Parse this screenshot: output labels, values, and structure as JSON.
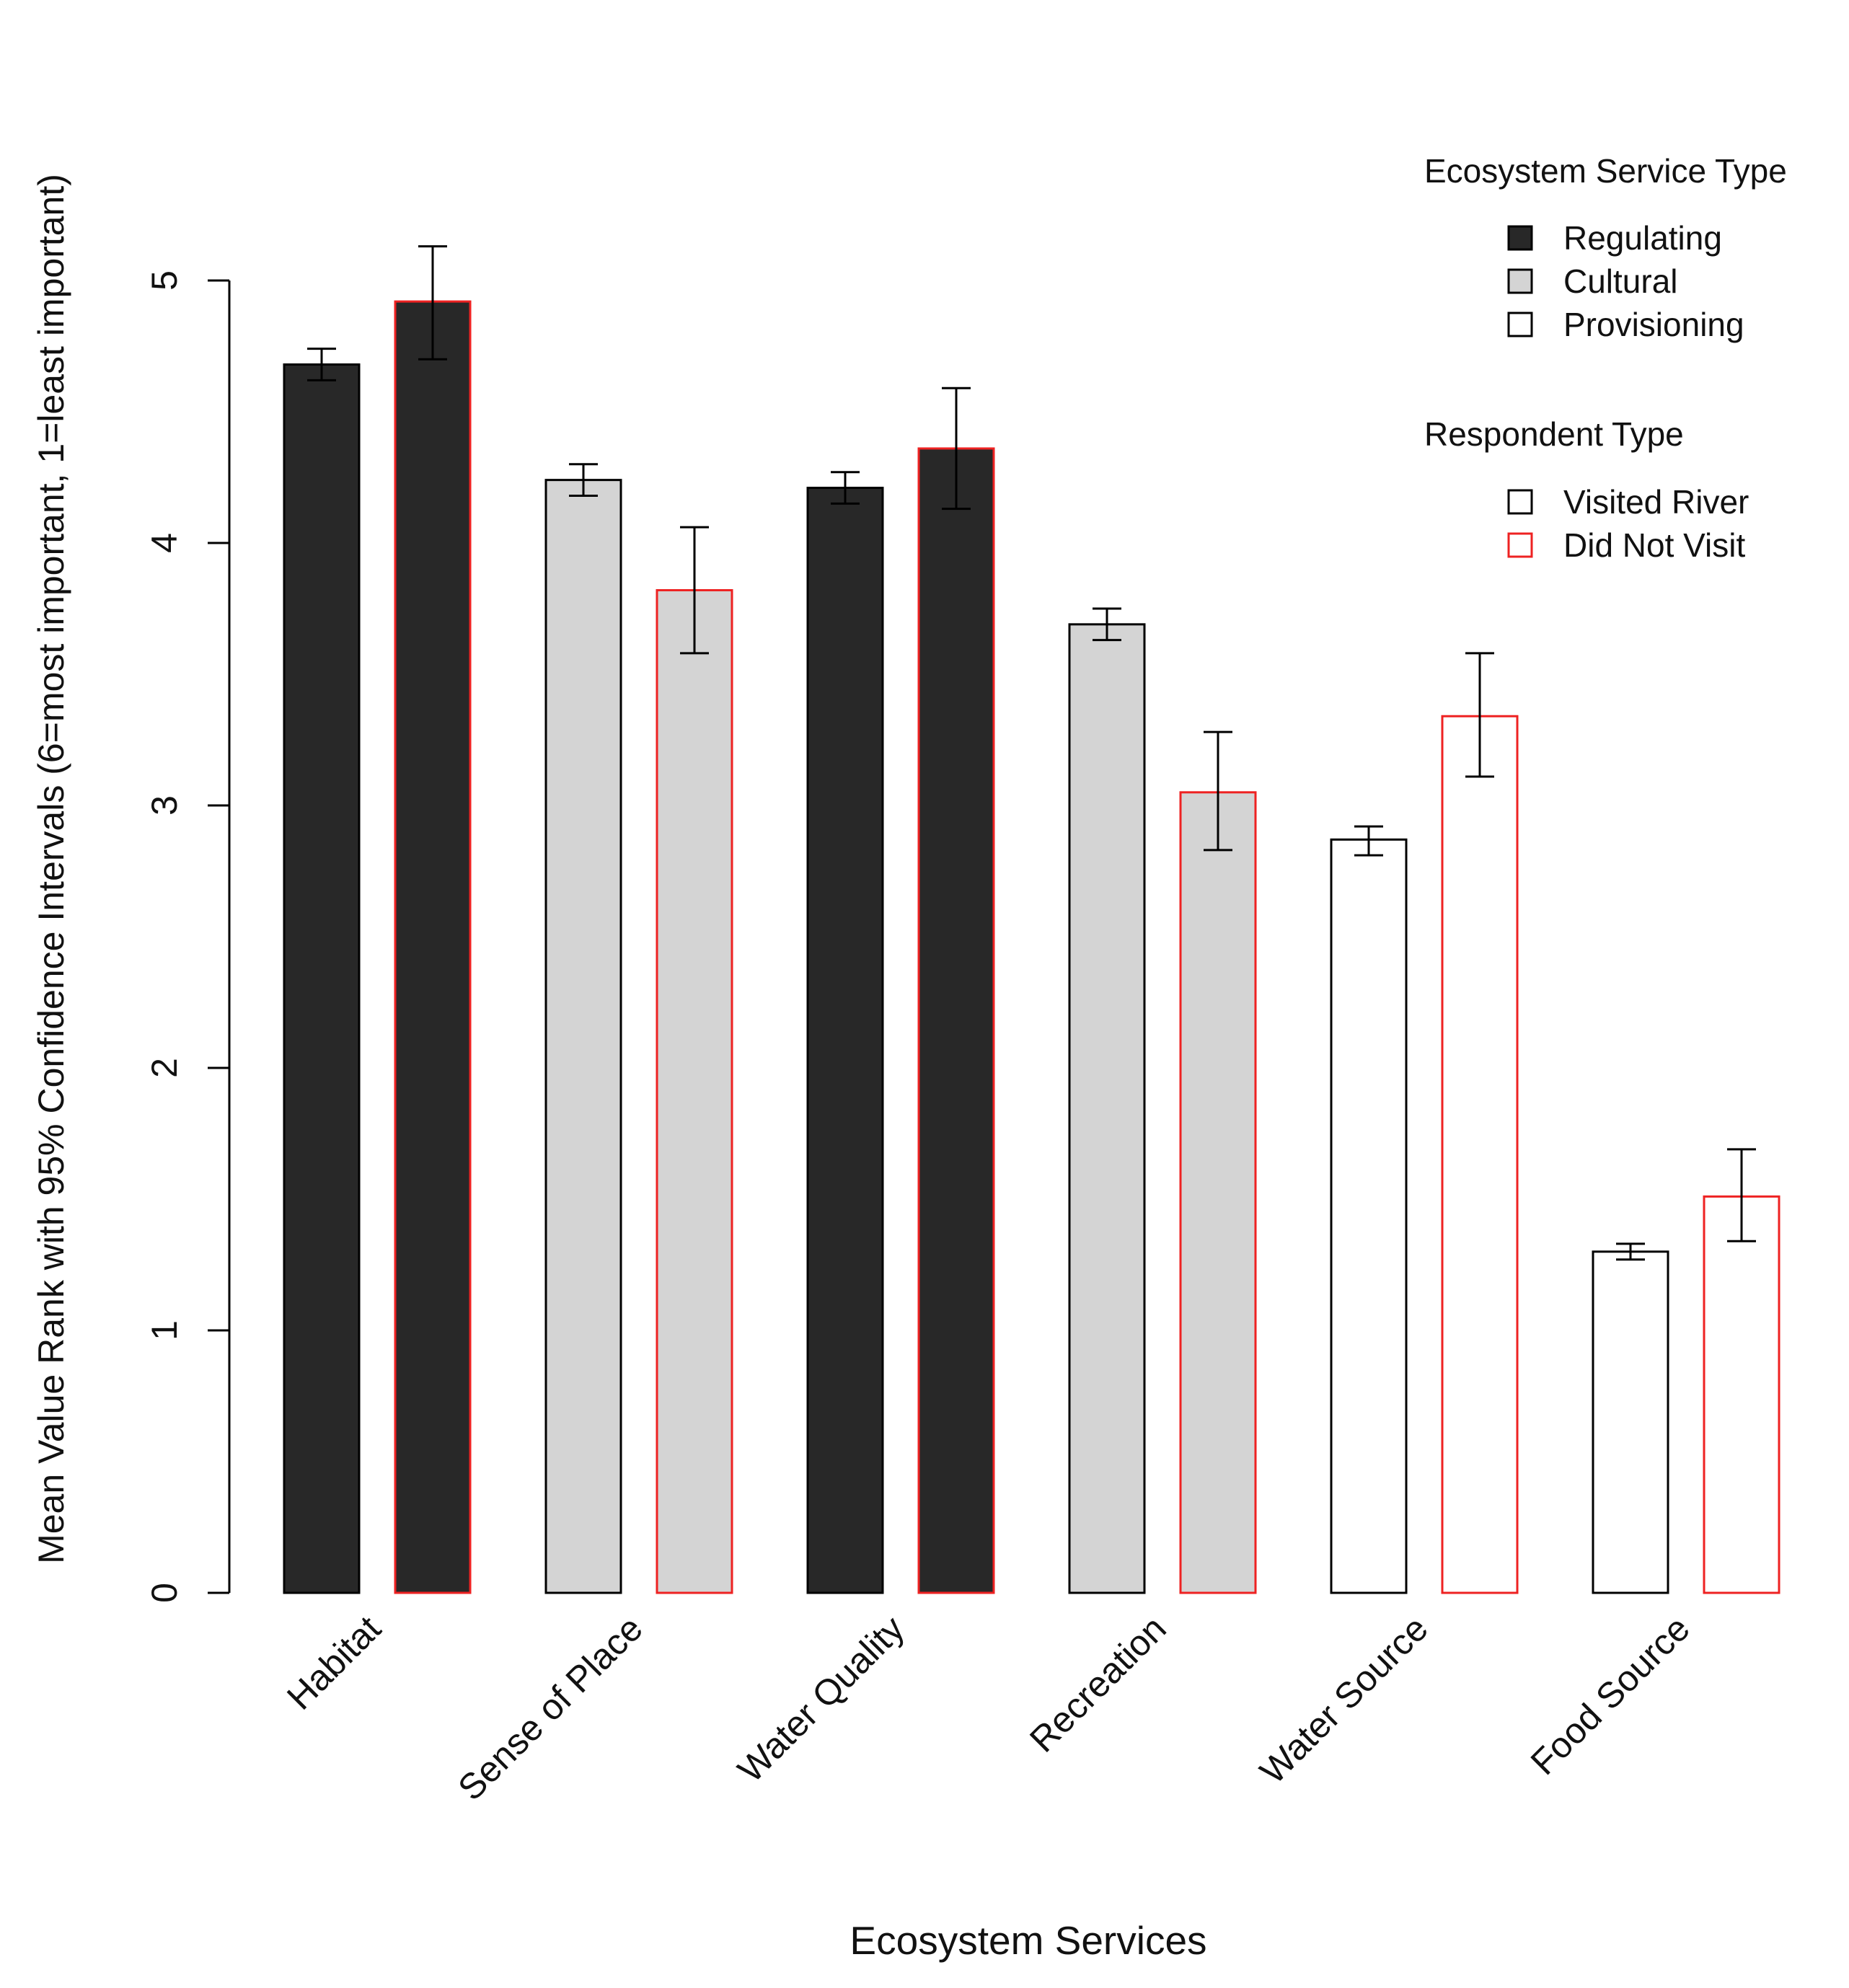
{
  "colors": {
    "regulating_fill": "#282828",
    "cultural_fill": "#d4d4d4",
    "provisioning_fill": "#ffffff",
    "visited_border": "#000000",
    "did_not_visit_border": "#ee2222",
    "axis": "#000000"
  },
  "chart_data": {
    "type": "bar",
    "title": "",
    "xlabel": "Ecosystem Services",
    "ylabel": "Mean Value Rank with 95% Confidence Intervals (6=most important, 1=least important)",
    "ylim": [
      0,
      5
    ],
    "yticks": [
      "0",
      "1",
      "2",
      "3",
      "4",
      "5"
    ],
    "categories": [
      "Habitat",
      "Sense of Place",
      "Water Quality",
      "Recreation",
      "Water Source",
      "Food Source"
    ],
    "service_types": [
      "Regulating",
      "Cultural",
      "Regulating",
      "Cultural",
      "Provisioning",
      "Provisioning"
    ],
    "series": [
      {
        "name": "Visited River",
        "values": [
          4.68,
          4.24,
          4.21,
          3.69,
          2.87,
          1.3
        ],
        "ci_low": [
          4.62,
          4.18,
          4.15,
          3.63,
          2.81,
          1.27
        ],
        "ci_high": [
          4.74,
          4.3,
          4.27,
          3.75,
          2.92,
          1.33
        ]
      },
      {
        "name": "Did Not Visit",
        "values": [
          4.92,
          3.82,
          4.36,
          3.05,
          3.34,
          1.51
        ],
        "ci_low": [
          4.7,
          3.58,
          4.13,
          2.83,
          3.11,
          1.34
        ],
        "ci_high": [
          5.13,
          4.06,
          4.59,
          3.28,
          3.58,
          1.69
        ]
      }
    ],
    "legends": [
      {
        "title": "Ecosystem Service Type",
        "placement": "top-right",
        "entries": [
          "Regulating",
          "Cultural",
          "Provisioning"
        ]
      },
      {
        "title": "Respondent Type",
        "placement": "top-right",
        "entries": [
          "Visited River",
          "Did Not Visit"
        ]
      }
    ]
  }
}
